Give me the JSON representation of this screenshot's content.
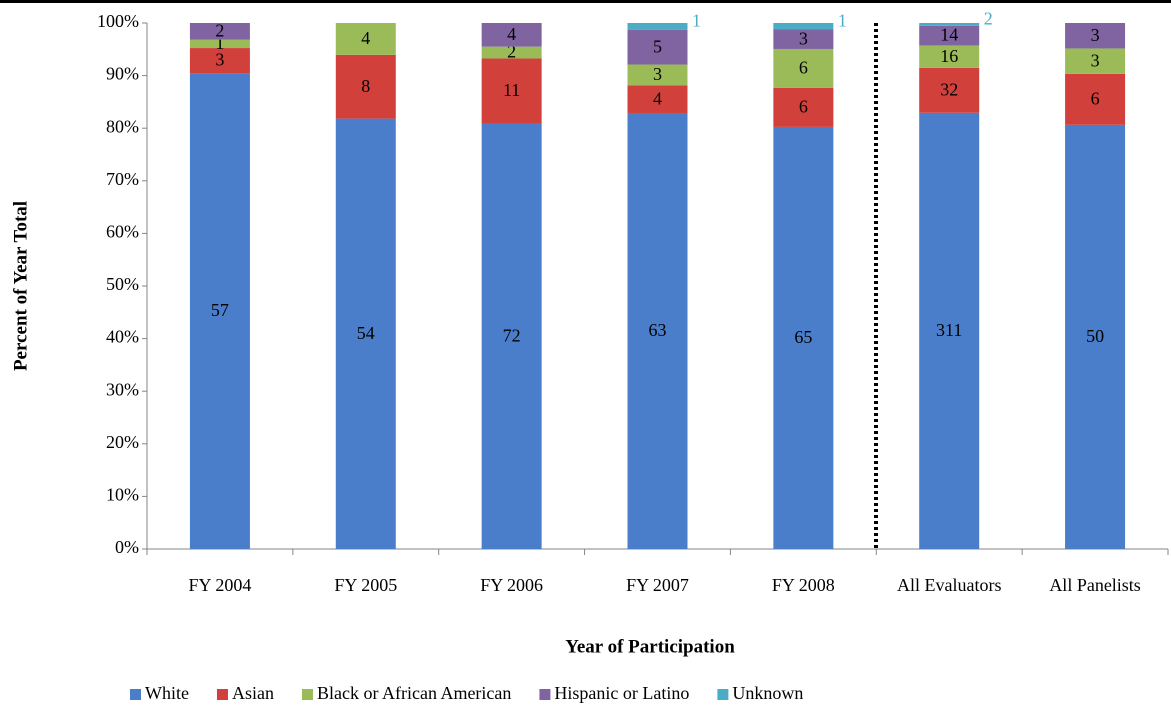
{
  "chart_data": {
    "type": "stacked_percent_bar",
    "x_label": "Year of Participation",
    "y_label": "Percent of Year Total",
    "categories": [
      "FY 2004",
      "FY 2005",
      "FY 2006",
      "FY 2007",
      "FY 2008",
      "All Evaluators",
      "All Panelists"
    ],
    "series": [
      {
        "name": "White",
        "color": "#4a7ecb",
        "values": [
          57,
          54,
          72,
          63,
          65,
          311,
          50
        ]
      },
      {
        "name": "Asian",
        "color": "#d2403b",
        "values": [
          3,
          8,
          11,
          4,
          6,
          32,
          6
        ]
      },
      {
        "name": "Black or African American",
        "color": "#9bbb59",
        "values": [
          1,
          4,
          2,
          3,
          6,
          16,
          3
        ]
      },
      {
        "name": "Hispanic or Latino",
        "color": "#8064a2",
        "values": [
          2,
          null,
          4,
          5,
          3,
          14,
          3
        ]
      },
      {
        "name": "Unknown",
        "color": "#4bacc6",
        "values": [
          null,
          null,
          null,
          1,
          1,
          2,
          null
        ]
      }
    ],
    "ylim": [
      0,
      100
    ],
    "yticks": [
      {
        "value": 0,
        "label": "0%"
      },
      {
        "value": 10,
        "label": "10%"
      },
      {
        "value": 20,
        "label": "20%"
      },
      {
        "value": 30,
        "label": "30%"
      },
      {
        "value": 40,
        "label": "40%"
      },
      {
        "value": 50,
        "label": "50%"
      },
      {
        "value": 60,
        "label": "60%"
      },
      {
        "value": 70,
        "label": "70%"
      },
      {
        "value": 80,
        "label": "80%"
      },
      {
        "value": 90,
        "label": "90%"
      },
      {
        "value": 100,
        "label": "100%"
      }
    ],
    "legend": "bottom"
  }
}
